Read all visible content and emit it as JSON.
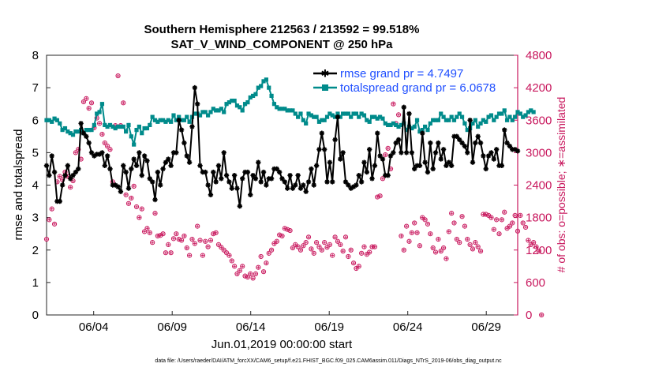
{
  "chart_data": {
    "type": "line",
    "title": "Southern Hemisphere 212563 / 213592 = 99.518%",
    "subtitle": "SAT_V_WIND_COMPONENT @ 250 hPa",
    "xlabel": "Jun.01,2019 00:00:00 start",
    "ylabel_left": "rmse and totalspread",
    "ylabel_right": "# of obs: o=possible; ∗=assimilated",
    "footnote": "data file: /Users/raeder/DAI/ATM_forcXX/CAM6_setup/f.e21.FHIST_BGC.f09_025.CAM6assim.011/Diags_NTrS_2019-06/obs_diag_output.nc",
    "x_range_days": [
      0,
      30
    ],
    "ylim_left": [
      0,
      8
    ],
    "ylim_right": [
      0,
      4800
    ],
    "yticks_left": [
      "0",
      "1",
      "2",
      "3",
      "4",
      "5",
      "6",
      "7",
      "8"
    ],
    "yticks_right": [
      "0",
      "600",
      "1200",
      "1800",
      "2400",
      "3000",
      "3600",
      "4200",
      "4800"
    ],
    "xticks": [
      "06/04",
      "06/09",
      "06/14",
      "06/19",
      "06/24",
      "06/29"
    ],
    "xtick_days": [
      3,
      8,
      13,
      18,
      23,
      28
    ],
    "legend_position": "top-right",
    "colors": {
      "rmse": "#000000",
      "spread": "#008b8b",
      "obs": "#c8175d",
      "legend_text": "#1f4fff"
    },
    "series": [
      {
        "name": "rmse grand pr = 4.7497",
        "axis": "left",
        "values": [
          4.6,
          4.3,
          4.9,
          4.4,
          3.5,
          3.5,
          4.0,
          4.3,
          4.6,
          4.2,
          4.3,
          4.4,
          4.5,
          5.9,
          5.6,
          5.5,
          5.3,
          5.0,
          4.9,
          4.95,
          4.95,
          5.0,
          4.6,
          4.9,
          4.5,
          4.0,
          4.0,
          3.95,
          3.8,
          4.6,
          4.4,
          3.9,
          4.5,
          4.8,
          4.6,
          5.0,
          4.3,
          4.9,
          4.75,
          4.2,
          4.1,
          3.55,
          4.4,
          4.0,
          4.5,
          4.7,
          4.8,
          4.6,
          5.0,
          5.0,
          6.0,
          5.7,
          5.3,
          4.9,
          4.7,
          5.8,
          7.0,
          6.5,
          4.6,
          4.4,
          4.4,
          4.0,
          3.7,
          4.4,
          4.1,
          4.6,
          4.2,
          5.0,
          4.3,
          4.1,
          3.9,
          4.3,
          3.9,
          3.35,
          4.2,
          4.4,
          4.4,
          3.7,
          4.3,
          4.2,
          4.7,
          4.1,
          4.4,
          4.0,
          4.2,
          4.2,
          4.5,
          4.5,
          4.4,
          4.2,
          4.1,
          3.9,
          4.3,
          3.9,
          4.0,
          4.3,
          3.9,
          4.0,
          3.8,
          4.1,
          4.5,
          4.0,
          4.6,
          5.1,
          5.6,
          5.1,
          4.1,
          4.7,
          4.1,
          5.4,
          6.1,
          4.8,
          5.0,
          4.1,
          4.0,
          3.9,
          3.95,
          4.0,
          4.3,
          4.1,
          4.7,
          4.4,
          5.1,
          4.2,
          4.6,
          5.6,
          4.9,
          4.8,
          4.3,
          4.3,
          4.9,
          5.0,
          5.3,
          5.4,
          5.0,
          6.4,
          5.0,
          6.2,
          5.0,
          4.5,
          4.6,
          4.6,
          5.6,
          4.7,
          4.4,
          5.3,
          4.5,
          5.0,
          5.3,
          4.8,
          5.1,
          4.6,
          4.7,
          4.6,
          5.5,
          5.5,
          5.4,
          5.3,
          5.2,
          5.0,
          6.0,
          4.7,
          5.3,
          5.5,
          5.3,
          4.9,
          4.5,
          4.9,
          5.0,
          4.8,
          5.1,
          4.6,
          4.6,
          5.7,
          5.3,
          5.2,
          5.1,
          5.1,
          5.05
        ]
      },
      {
        "name": "totalspread grand pr = 6.0678",
        "axis": "left",
        "values": [
          6.0,
          6.0,
          5.95,
          6.05,
          6.0,
          5.9,
          5.7,
          5.75,
          5.65,
          5.6,
          5.55,
          5.65,
          5.65,
          5.7,
          5.6,
          5.7,
          5.7,
          5.7,
          5.85,
          6.2,
          6.25,
          6.5,
          5.85,
          5.8,
          5.85,
          5.8,
          5.75,
          5.8,
          5.8,
          5.8,
          5.65,
          5.85,
          5.5,
          5.25,
          5.7,
          5.8,
          5.6,
          5.75,
          5.75,
          5.85,
          6.1,
          6.0,
          5.95,
          6.0,
          6.0,
          5.95,
          6.0,
          5.95,
          6.15,
          6.0,
          6.1,
          6.0,
          6.0,
          6.1,
          5.95,
          6.1,
          6.2,
          6.2,
          6.15,
          6.25,
          6.25,
          6.15,
          6.25,
          6.35,
          6.3,
          6.3,
          6.35,
          6.25,
          6.5,
          6.55,
          6.6,
          6.6,
          6.45,
          6.4,
          6.3,
          6.5,
          6.55,
          6.7,
          6.75,
          6.8,
          7.0,
          7.05,
          7.2,
          7.25,
          7.0,
          6.75,
          6.5,
          6.4,
          6.35,
          6.35,
          6.35,
          6.3,
          6.3,
          6.3,
          6.2,
          6.1,
          6.2,
          6.0,
          5.9,
          6.2,
          6.15,
          6.1,
          6.1,
          5.95,
          6.0,
          6.0,
          6.1,
          6.2,
          6.15,
          6.1,
          6.2,
          6.1,
          6.2,
          6.2,
          6.2,
          6.1,
          6.2,
          6.2,
          6.1,
          6.2,
          6.15,
          6.0,
          5.95,
          6.1,
          6.1,
          6.05,
          6.1,
          6.05,
          5.9,
          5.85,
          5.85,
          5.9,
          5.85,
          5.8,
          5.85,
          5.9,
          5.7,
          5.8,
          5.75,
          5.8,
          6.0,
          5.65,
          5.7,
          5.8,
          5.7,
          5.9,
          6.0,
          6.0,
          6.0,
          6.2,
          6.1,
          6.0,
          6.0,
          6.1,
          6.0,
          6.1,
          6.2,
          6.1,
          5.9,
          5.7,
          5.75,
          5.9,
          6.0,
          5.8,
          5.9,
          6.0,
          5.95,
          6.1,
          6.15,
          6.0,
          6.1,
          6.2,
          6.2,
          6.3,
          6.0,
          6.1,
          6.0,
          6.1,
          6.25,
          6.2,
          6.1,
          6.15,
          6.25,
          6.3,
          6.25
        ]
      },
      {
        "name": "# of obs possible",
        "axis": "right",
        "values": [
          1400,
          1760,
          1960,
          1680,
          2460,
          2560,
          2500,
          2640,
          2560,
          2360,
          2480,
          3000,
          3060,
          2880,
          3940,
          4000,
          3820,
          3920,
          3460,
          3640,
          3540,
          3340,
          3180,
          3120,
          3060,
          2460,
          3500,
          4420,
          3500,
          3920,
          2220,
          2060,
          2160,
          2380,
          2000,
          1800,
          1960,
          1540,
          1600,
          1520,
          1340,
          1880,
          1460,
          1470,
          1500,
          1150,
          1300,
          1150,
          1410,
          1500,
          1400,
          1380,
          1460,
          1240,
          1100,
          1400,
          1320,
          1640,
          1380,
          1100,
          1360,
          1260,
          1380,
          1500,
          1520,
          1300,
          1250,
          1200,
          1150,
          1100,
          1000,
          900,
          760,
          820,
          900,
          720,
          700,
          760,
          680,
          760,
          880,
          1080,
          800,
          960,
          1140,
          1200,
          1320,
          1360,
          1480,
          1460,
          1600,
          1580,
          1560,
          1240,
          1300,
          1260,
          1200,
          1280,
          1340,
          1440,
          1220,
          1140,
          1340,
          1260,
          1200,
          1340,
          1250,
          1300,
          1100,
          1440,
          1360,
          1300,
          1180,
          1440,
          1080,
          1200,
          960,
          860,
          900,
          1140,
          1260,
          1120,
          1160,
          1260,
          1260,
          2180,
          2200,
          2520,
          2960,
          3080,
          2700,
          3900,
          3540,
          3700,
          1460,
          1200,
          1640,
          1360,
          1520,
          1700,
          1520,
          1280,
          1800,
          1760,
          1680,
          1500,
          1240,
          1160,
          1400,
          1180,
          1240,
          1040,
          1540,
          1880,
          1700,
          1400,
          1340,
          1820,
          1640,
          1400,
          1300,
          1220,
          1340,
          1260,
          1180,
          1860,
          1860,
          1840,
          1800,
          1580,
          1760,
          1500,
          1760,
          1900,
          1600,
          1640,
          1700,
          1840,
          1550,
          1840,
          1700,
          1620,
          1380,
          1300,
          1340,
          1260,
          1180,
          0
        ]
      }
    ]
  },
  "legend": {
    "rmse_label": "rmse grand pr = 4.7497",
    "spread_label": "totalspread grand pr = 6.0678"
  }
}
